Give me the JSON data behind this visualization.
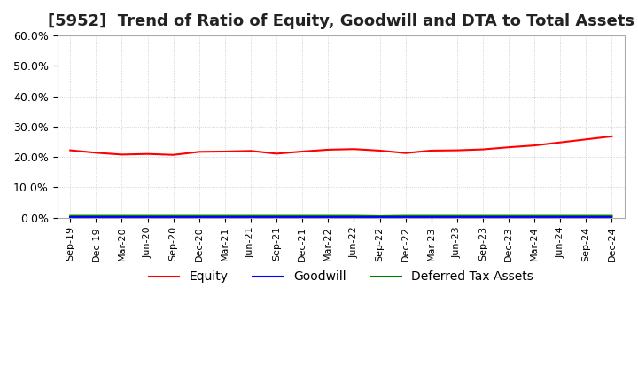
{
  "title": "[5952]  Trend of Ratio of Equity, Goodwill and DTA to Total Assets",
  "x_labels": [
    "Sep-19",
    "Dec-19",
    "Mar-20",
    "Jun-20",
    "Sep-20",
    "Dec-20",
    "Mar-21",
    "Jun-21",
    "Sep-21",
    "Dec-21",
    "Mar-22",
    "Jun-22",
    "Sep-22",
    "Dec-22",
    "Mar-23",
    "Jun-23",
    "Sep-23",
    "Dec-23",
    "Mar-24",
    "Jun-24",
    "Sep-24",
    "Dec-24"
  ],
  "equity": [
    0.222,
    0.214,
    0.208,
    0.21,
    0.207,
    0.217,
    0.218,
    0.22,
    0.211,
    0.218,
    0.224,
    0.226,
    0.221,
    0.213,
    0.221,
    0.222,
    0.225,
    0.232,
    0.238,
    0.248,
    0.258,
    0.268
  ],
  "goodwill": [
    0.003,
    0.003,
    0.003,
    0.003,
    0.003,
    0.003,
    0.003,
    0.003,
    0.003,
    0.003,
    0.003,
    0.003,
    0.003,
    0.003,
    0.003,
    0.003,
    0.003,
    0.003,
    0.003,
    0.003,
    0.003,
    0.003
  ],
  "dta": [
    0.006,
    0.006,
    0.006,
    0.006,
    0.006,
    0.006,
    0.006,
    0.006,
    0.006,
    0.006,
    0.006,
    0.006,
    0.005,
    0.006,
    0.006,
    0.006,
    0.006,
    0.006,
    0.006,
    0.006,
    0.006,
    0.006
  ],
  "equity_color": "#ff0000",
  "goodwill_color": "#0000ff",
  "dta_color": "#008000",
  "ylim": [
    0.0,
    0.6
  ],
  "yticks": [
    0.0,
    0.1,
    0.2,
    0.3,
    0.4,
    0.5,
    0.6
  ],
  "title_fontsize": 13,
  "legend_labels": [
    "Equity",
    "Goodwill",
    "Deferred Tax Assets"
  ],
  "grid_color": "#c8c8c8",
  "background_color": "#ffffff"
}
